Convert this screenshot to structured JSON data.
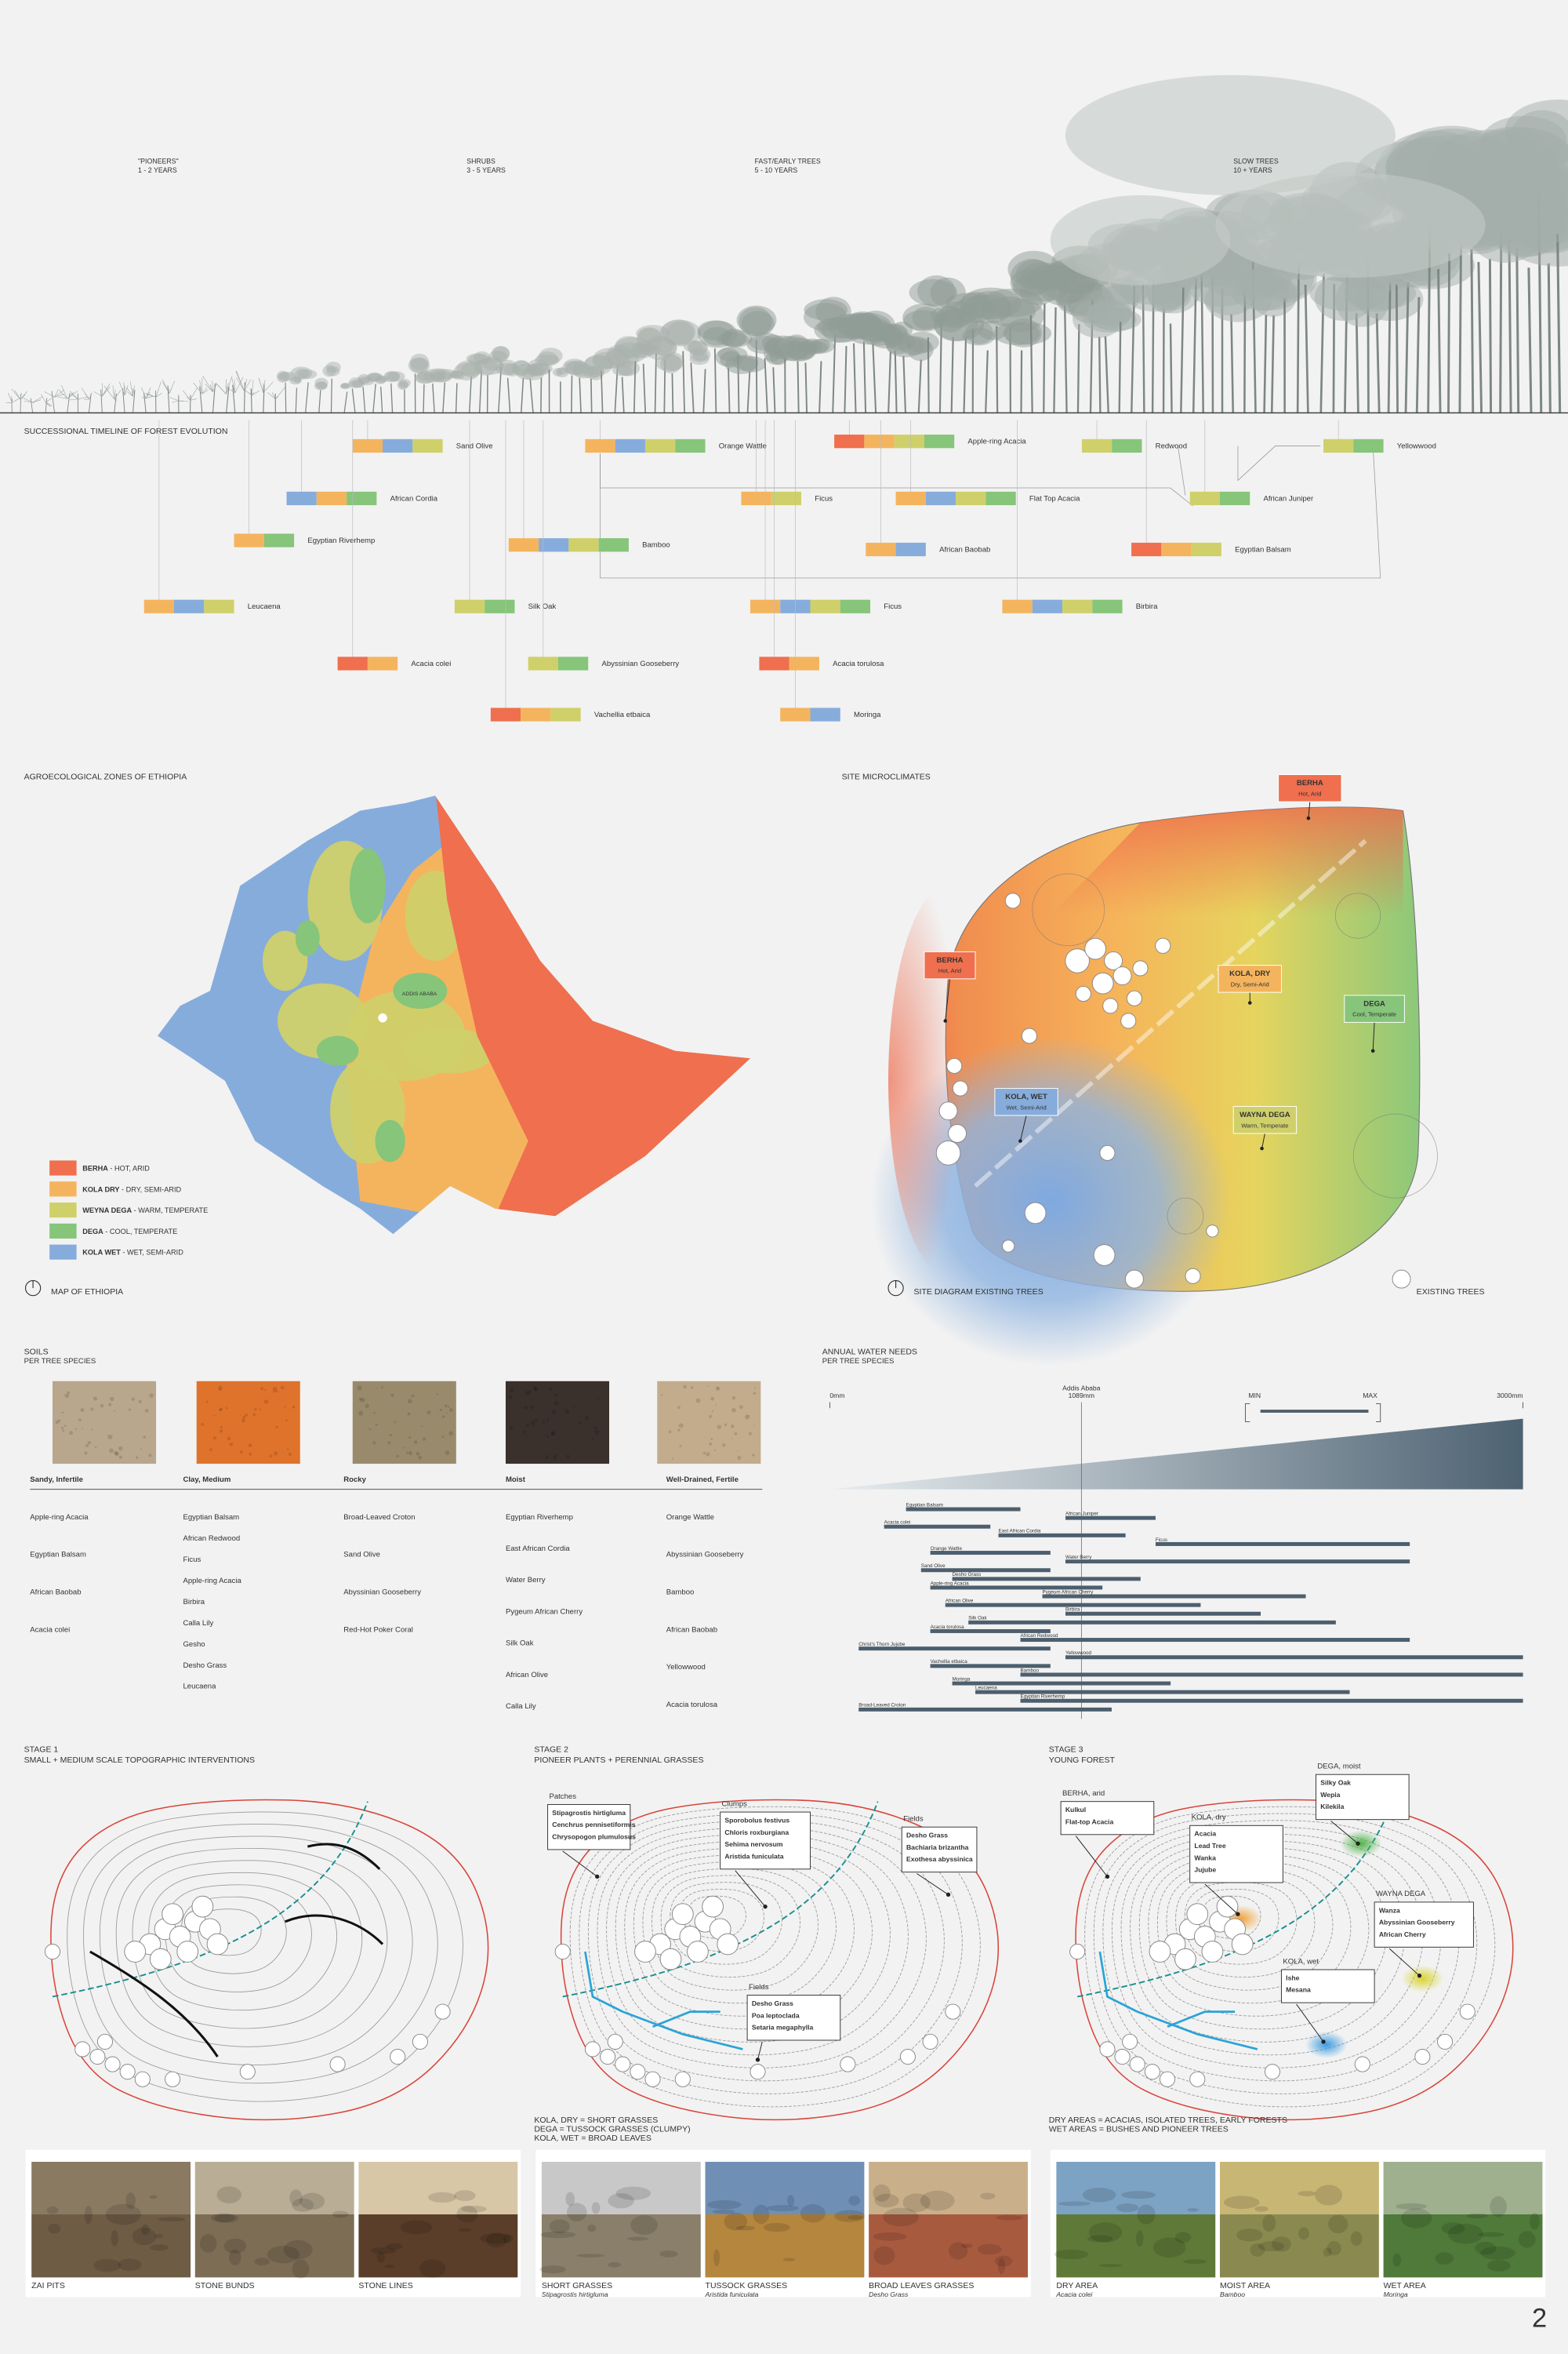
{
  "forest_section": {
    "stages": [
      {
        "label": "\"PIONEERS\"",
        "years": "1 - 2 YEARS"
      },
      {
        "label": "SHRUBS",
        "years": "3 - 5 YEARS"
      },
      {
        "label": "FAST/EARLY TREES",
        "years": "5 - 10 YEARS"
      },
      {
        "label": "SLOW TREES",
        "years": "10 + YEARS"
      }
    ]
  },
  "timeline": {
    "title": "SUCCESSIONAL TIMELINE OF FOREST EVOLUTION",
    "species": [
      {
        "name": "Sand Olive",
        "colors": [
          "#f4b45e",
          "#86acdc",
          "#cfd06a"
        ]
      },
      {
        "name": "Orange Wattle",
        "colors": [
          "#f4b45e",
          "#86acdc",
          "#cfd06a",
          "#86c57a"
        ]
      },
      {
        "name": "Apple-ring Acacia",
        "colors": [
          "#ef6f4e",
          "#f4b45e",
          "#cfd06a",
          "#86c57a"
        ]
      },
      {
        "name": "Redwood",
        "colors": [
          "#cfd06a",
          "#86c57a"
        ]
      },
      {
        "name": "Yellowwood",
        "colors": [
          "#cfd06a",
          "#86c57a"
        ]
      },
      {
        "name": "African Cordia",
        "colors": [
          "#86acdc",
          "#f4b45e",
          "#86c57a"
        ]
      },
      {
        "name": "Ficus",
        "colors": [
          "#f4b45e",
          "#cfd06a"
        ]
      },
      {
        "name": "Flat Top Acacia",
        "colors": [
          "#f4b45e",
          "#86acdc",
          "#cfd06a",
          "#86c57a"
        ]
      },
      {
        "name": "African Juniper",
        "colors": [
          "#cfd06a",
          "#86c57a"
        ]
      },
      {
        "name": "Egyptian Riverhemp",
        "colors": [
          "#f4b45e",
          "#86c57a"
        ]
      },
      {
        "name": "Bamboo",
        "colors": [
          "#f4b45e",
          "#86acdc",
          "#cfd06a",
          "#86c57a"
        ]
      },
      {
        "name": "African Baobab",
        "colors": [
          "#f4b45e",
          "#86acdc"
        ]
      },
      {
        "name": "Egyptian Balsam",
        "colors": [
          "#ef6f4e",
          "#f4b45e",
          "#cfd06a"
        ]
      },
      {
        "name": "Leucaena",
        "colors": [
          "#f4b45e",
          "#86acdc",
          "#cfd06a"
        ]
      },
      {
        "name": "Silk Oak",
        "colors": [
          "#cfd06a",
          "#86c57a"
        ]
      },
      {
        "name": "Ficus",
        "colors": [
          "#f4b45e",
          "#86acdc",
          "#cfd06a",
          "#86c57a"
        ]
      },
      {
        "name": "Birbira",
        "colors": [
          "#f4b45e",
          "#86acdc",
          "#cfd06a",
          "#86c57a"
        ]
      },
      {
        "name": "Acacia colei",
        "colors": [
          "#ef6f4e",
          "#f4b45e"
        ]
      },
      {
        "name": "Abyssinian Gooseberry",
        "colors": [
          "#cfd06a",
          "#86c57a"
        ]
      },
      {
        "name": "Acacia torulosa",
        "colors": [
          "#ef6f4e",
          "#f4b45e"
        ]
      },
      {
        "name": "Vachellia etbaica",
        "colors": [
          "#ef6f4e",
          "#f4b45e",
          "#cfd06a"
        ]
      },
      {
        "name": "Moringa",
        "colors": [
          "#f4b45e",
          "#86acdc"
        ]
      }
    ]
  },
  "zones_map": {
    "title": "AGROECOLOGICAL ZONES OF ETHIOPIA",
    "city": "ADDIS ABABA",
    "caption": "MAP OF ETHIOPIA",
    "legend": [
      {
        "name": "BERHA",
        "desc": " - HOT, ARID",
        "color": "#ef6f4e"
      },
      {
        "name": "KOLA DRY",
        "desc": " - DRY, SEMI-ARID",
        "color": "#f4b45e"
      },
      {
        "name": "WEYNA DEGA",
        "desc": " - WARM, TEMPERATE",
        "color": "#cfd06a"
      },
      {
        "name": "DEGA",
        "desc": " - COOL, TEMPERATE",
        "color": "#86c57a"
      },
      {
        "name": "KOLA WET",
        "desc": " - WET, SEMI-ARID",
        "color": "#86acdc"
      }
    ]
  },
  "microclimates": {
    "title": "SITE MICROCLIMATES",
    "caption": "SITE DIAGRAM EXISTING TREES",
    "legend": "EXISTING TREES",
    "zones": [
      {
        "name": "BERHA",
        "desc": "Hot, Arid",
        "color": "#ef6f4e"
      },
      {
        "name": "BERHA",
        "desc": "Hot, Arid",
        "color": "#ef6f4e"
      },
      {
        "name": "KOLA, DRY",
        "desc": "Dry, Semi-Arid",
        "color": "#f4b45e"
      },
      {
        "name": "DEGA",
        "desc": "Cool, Temperate",
        "color": "#86c57a"
      },
      {
        "name": "KOLA, WET",
        "desc": "Wet, Semi-Arid",
        "color": "#86acdc"
      },
      {
        "name": "WAYNA DEGA",
        "desc": "Warm, Temperate",
        "color": "#cfd06a"
      }
    ]
  },
  "soils": {
    "title": "SOILS",
    "subtitle": "PER TREE SPECIES",
    "columns": [
      {
        "name": "Sandy, Infertile",
        "color": "#b8a68d",
        "species": [
          "Apple-ring Acacia",
          "Egyptian Balsam",
          "African Baobab",
          "Acacia colei"
        ]
      },
      {
        "name": "Clay, Medium",
        "color": "#e0732c",
        "species": [
          "Egyptian Balsam",
          "African Redwood",
          "Ficus",
          "Apple-ring Acacia",
          "Birbira",
          "Calla Lily",
          "Gesho",
          "Desho Grass",
          "Leucaena"
        ]
      },
      {
        "name": "Rocky",
        "color": "#9a8a6c",
        "species": [
          "Broad-Leaved Croton",
          "Sand Olive",
          "Abyssinian Gooseberry",
          "Red-Hot Poker Coral"
        ]
      },
      {
        "name": "Moist",
        "color": "#3a302c",
        "species": [
          "Egyptian Riverhemp",
          "East African Cordia",
          "Water Berry",
          "Pygeum African Cherry",
          "Silk Oak",
          "African Olive",
          "Calla Lily"
        ]
      },
      {
        "name": "Well-Drained, Fertile",
        "color": "#c2ac8c",
        "species": [
          "Orange Wattle",
          "Abyssinian Gooseberry",
          "Bamboo",
          "African Baobab",
          "Yellowwood",
          "Acacia torulosa"
        ]
      }
    ]
  },
  "water": {
    "type": "range-bar",
    "title": "ANNUAL WATER NEEDS",
    "subtitle": "PER TREE SPECIES",
    "xlim": [
      0,
      3000
    ],
    "xticks": [
      {
        "value": 0,
        "label": "0mm"
      },
      {
        "value": 3000,
        "label": "3000mm"
      }
    ],
    "reference": {
      "name": "Addis Ababa",
      "value": 1089,
      "label": "1089mm"
    },
    "legend": {
      "min": "MIN",
      "max": "MAX"
    },
    "color": "#4d5f6e",
    "categories": [
      "Egyptian Balsam",
      "African Juniper",
      "Acacia colei",
      "East African Cordia",
      "Ficus",
      "Orange Wattle",
      "Water Berry",
      "Sand Olive",
      "Desho Grass",
      "Apple-ring Acacia",
      "Pygeum African Cherry",
      "African Olive",
      "Birbira",
      "Silk Oak",
      "Acacia torulosa",
      "African Redwood",
      "Christ's Thorn Jujube",
      "Yellowwood",
      "Vachellia etbaica",
      "Bamboo",
      "Moringa",
      "Leucaena",
      "Egyptian Riverhemp",
      "Broad-Leaved Croton"
    ],
    "min": [
      330,
      1020,
      235,
      730,
      1410,
      435,
      1020,
      395,
      530,
      435,
      920,
      500,
      1020,
      600,
      435,
      825,
      125,
      1020,
      435,
      825,
      530,
      630,
      825,
      125
    ],
    "max": [
      825,
      1410,
      695,
      1280,
      2510,
      955,
      2510,
      955,
      1345,
      1180,
      2060,
      1605,
      1865,
      2190,
      955,
      2510,
      955,
      3000,
      955,
      3000,
      1475,
      2250,
      3000,
      1220
    ]
  },
  "stages": [
    {
      "title": "STAGE 1",
      "subtitle": "SMALL + MEDIUM SCALE TOPOGRAPHIC INTERVENTIONS",
      "callouts": [],
      "notes": [],
      "photos": [
        {
          "caption": "ZAI PITS"
        },
        {
          "caption": "STONE BUNDS"
        },
        {
          "caption": "STONE LINES"
        }
      ]
    },
    {
      "title": "STAGE 2",
      "subtitle": "PIONEER PLANTS + PERENNIAL GRASSES",
      "callouts": [
        {
          "heading": "Patches",
          "items": [
            "Stipagrostis hirtigluma",
            "Cenchrus pennisetiformis",
            "Chrysopogon plumulosus"
          ]
        },
        {
          "heading": "Clumps",
          "items": [
            "Sporobolus festivus",
            "Chloris roxburgiana",
            "Sehima nervosum",
            "Aristida funiculata"
          ]
        },
        {
          "heading": "Fields",
          "items": [
            "Desho Grass",
            "Bachiaria brizantha",
            "Exothesa abyssinica"
          ]
        },
        {
          "heading": "Fields",
          "items": [
            "Desho Grass",
            "Poa leptoclada",
            "Setaria megaphylla"
          ]
        }
      ],
      "notes": [
        "KOLA, DRY = SHORT GRASSES",
        "DEGA = TUSSOCK GRASSES (CLUMPY)",
        "KOLA, WET = BROAD LEAVES"
      ],
      "photos": [
        {
          "caption": "SHORT GRASSES",
          "species": "Stipagrostis hirtigluma"
        },
        {
          "caption": "TUSSOCK GRASSES",
          "species": "Aristida funiculata"
        },
        {
          "caption": "BROAD LEAVES GRASSES",
          "species": "Desho Grass"
        }
      ]
    },
    {
      "title": "STAGE 3",
      "subtitle": "YOUNG FOREST",
      "callouts": [
        {
          "heading": "BERHA, arid",
          "items": [
            "Kulkul",
            "Flat-top Acacia"
          ]
        },
        {
          "heading": "KOLA, dry",
          "items": [
            "Acacia",
            "Lead Tree",
            "Wanka",
            "Jujube"
          ]
        },
        {
          "heading": "DEGA, moist",
          "items": [
            "Silky Oak",
            "Wepia",
            "Kilekila"
          ]
        },
        {
          "heading": "WAYNA DEGA",
          "items": [
            "Wanza",
            "Abyssinian Gooseberry",
            "African Cherry"
          ]
        },
        {
          "heading": "KOLA, wet",
          "items": [
            "Ishe",
            "Mesana"
          ]
        }
      ],
      "notes": [
        "DRY AREAS = ACACIAS, ISOLATED TREES, EARLY FORESTS",
        "WET AREAS = BUSHES AND PIONEER TREES"
      ],
      "photos": [
        {
          "caption": "DRY AREA",
          "species": "Acacia colei"
        },
        {
          "caption": "MOIST AREA",
          "species": "Bamboo"
        },
        {
          "caption": "WET AREA",
          "species": "Moringa"
        }
      ]
    }
  ],
  "page_number": "2"
}
